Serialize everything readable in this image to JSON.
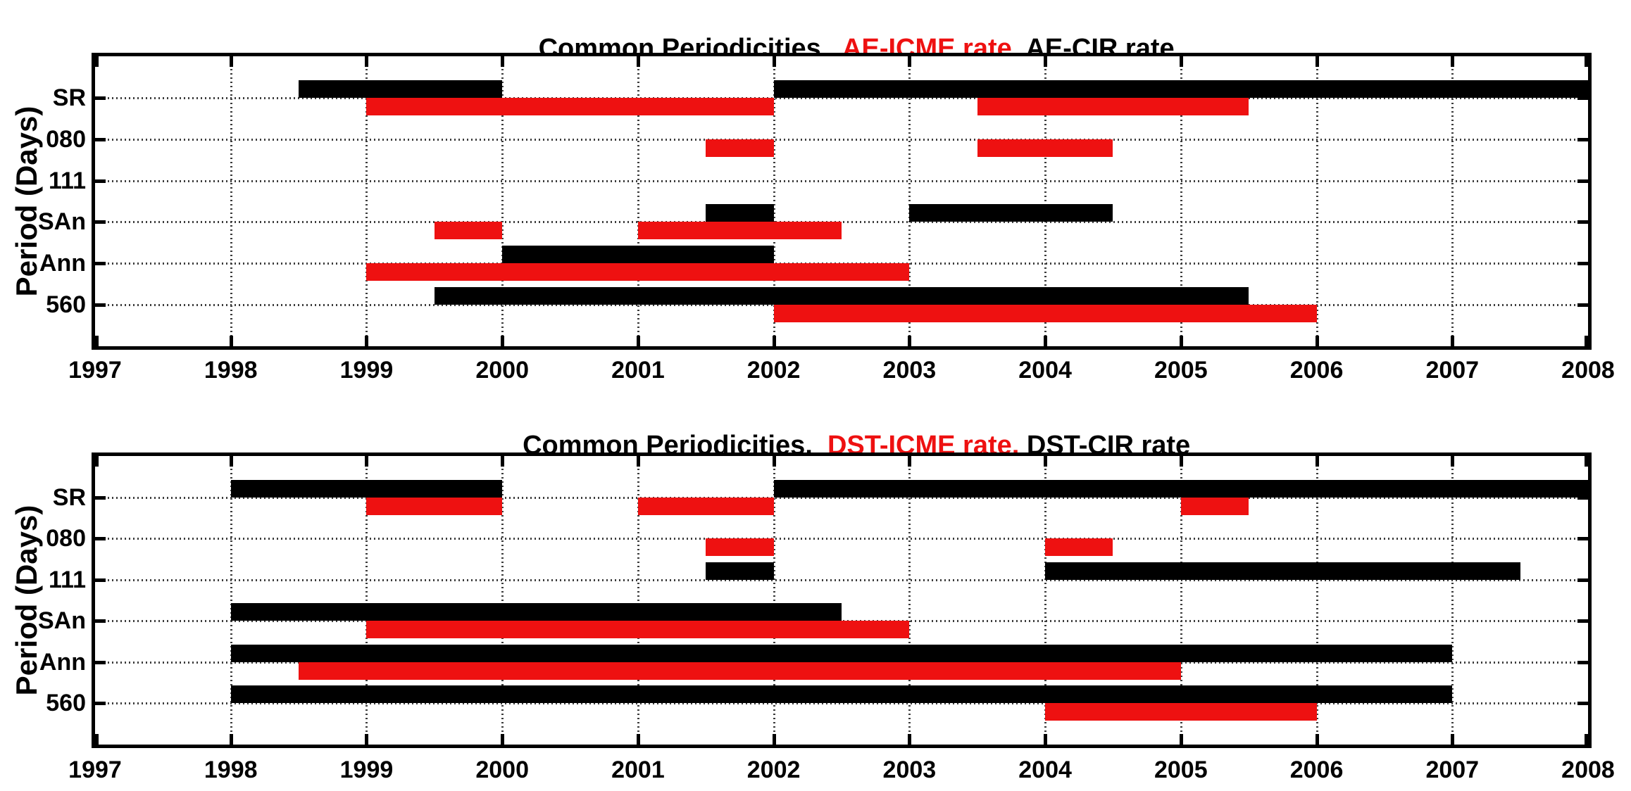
{
  "chart_data": [
    {
      "type": "gantt",
      "title_parts": [
        {
          "text": "Common Periodicities,  ",
          "color": "#000000"
        },
        {
          "text": "AE-ICME rate,",
          "color": "#ee1111"
        },
        {
          "text": " AE-CIR rate",
          "color": "#000000"
        }
      ],
      "ylabel": "Period (Days)",
      "categories": [
        "SR",
        "080",
        "111",
        "SAn",
        "Ann",
        "560"
      ],
      "x_ticks": [
        1997,
        1998,
        1999,
        2000,
        2001,
        2002,
        2003,
        2004,
        2005,
        2006,
        2007,
        2008
      ],
      "xlim": [
        1997,
        2008
      ],
      "grid": true,
      "series": [
        {
          "name": "AE-CIR rate",
          "color": "#000000",
          "side": "above",
          "segments": [
            {
              "category": "SR",
              "from": 1998.5,
              "to": 2000
            },
            {
              "category": "SR",
              "from": 2002,
              "to": 2008
            },
            {
              "category": "SAn",
              "from": 2001.5,
              "to": 2002
            },
            {
              "category": "SAn",
              "from": 2003,
              "to": 2004.5
            },
            {
              "category": "Ann",
              "from": 2000,
              "to": 2002
            },
            {
              "category": "560",
              "from": 1999.5,
              "to": 2005.5
            }
          ]
        },
        {
          "name": "AE-ICME rate",
          "color": "#ee1111",
          "side": "below",
          "segments": [
            {
              "category": "SR",
              "from": 1999,
              "to": 2002
            },
            {
              "category": "SR",
              "from": 2003.5,
              "to": 2005.5
            },
            {
              "category": "080",
              "from": 2001.5,
              "to": 2002
            },
            {
              "category": "080",
              "from": 2003.5,
              "to": 2004.5
            },
            {
              "category": "SAn",
              "from": 1999.5,
              "to": 2000
            },
            {
              "category": "SAn",
              "from": 2001,
              "to": 2002.5
            },
            {
              "category": "Ann",
              "from": 1999,
              "to": 2003
            },
            {
              "category": "560",
              "from": 2002,
              "to": 2006
            }
          ]
        }
      ]
    },
    {
      "type": "gantt",
      "title_parts": [
        {
          "text": "Common Periodicities,  ",
          "color": "#000000"
        },
        {
          "text": "DST-ICME rate,",
          "color": "#ee1111"
        },
        {
          "text": " DST-CIR rate",
          "color": "#000000"
        }
      ],
      "ylabel": "Period (Days)",
      "categories": [
        "SR",
        "080",
        "111",
        "SAn",
        "Ann",
        "560"
      ],
      "x_ticks": [
        1997,
        1998,
        1999,
        2000,
        2001,
        2002,
        2003,
        2004,
        2005,
        2006,
        2007,
        2008
      ],
      "xlim": [
        1997,
        2008
      ],
      "grid": true,
      "series": [
        {
          "name": "DST-CIR rate",
          "color": "#000000",
          "side": "above",
          "segments": [
            {
              "category": "SR",
              "from": 1998,
              "to": 2000
            },
            {
              "category": "SR",
              "from": 2002,
              "to": 2008
            },
            {
              "category": "111",
              "from": 2001.5,
              "to": 2002
            },
            {
              "category": "111",
              "from": 2004,
              "to": 2007.5
            },
            {
              "category": "SAn",
              "from": 1998,
              "to": 2002.5
            },
            {
              "category": "Ann",
              "from": 1998,
              "to": 2007
            },
            {
              "category": "560",
              "from": 1998,
              "to": 2007
            }
          ]
        },
        {
          "name": "DST-ICME rate",
          "color": "#ee1111",
          "side": "below",
          "segments": [
            {
              "category": "SR",
              "from": 1999,
              "to": 2000
            },
            {
              "category": "SR",
              "from": 2001,
              "to": 2002
            },
            {
              "category": "SR",
              "from": 2005,
              "to": 2005.5
            },
            {
              "category": "080",
              "from": 2001.5,
              "to": 2002
            },
            {
              "category": "080",
              "from": 2004,
              "to": 2004.5
            },
            {
              "category": "SAn",
              "from": 1999,
              "to": 2003
            },
            {
              "category": "Ann",
              "from": 1998.5,
              "to": 2005
            },
            {
              "category": "560",
              "from": 2004,
              "to": 2006
            }
          ]
        }
      ]
    }
  ]
}
